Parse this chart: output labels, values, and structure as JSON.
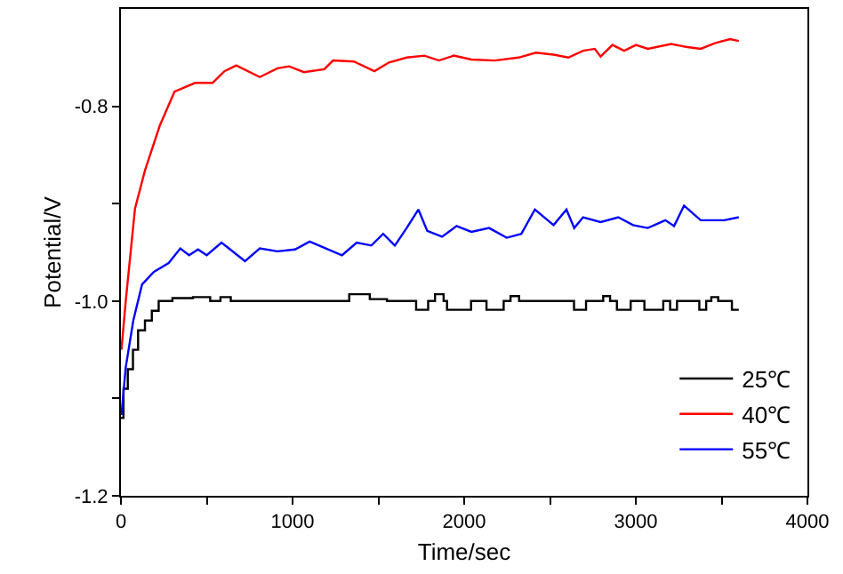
{
  "chart_data": {
    "type": "line",
    "xlabel": "Time/sec",
    "ylabel": "Potential/V",
    "xlim": [
      0,
      4000
    ],
    "ylim": [
      -1.2,
      -0.7
    ],
    "xticks": [
      0,
      {
        "value": 500,
        "label": null
      },
      1000,
      {
        "value": 1500,
        "label": null
      },
      2000,
      {
        "value": 2500,
        "label": null
      },
      3000,
      {
        "value": 3500,
        "label": null
      },
      4000
    ],
    "yticks": [
      -1.2,
      {
        "value": -1.1,
        "label": null
      },
      {
        "value": -1.0,
        "label": "-1.0"
      },
      {
        "value": -0.9,
        "label": null
      },
      -0.8
    ],
    "legend": "bottom right",
    "marker": "none",
    "line_style": "solid",
    "series": [
      {
        "name": "25℃",
        "color": "#000000",
        "type": "step",
        "x": [
          0,
          15,
          40,
          70,
          100,
          140,
          180,
          220,
          300,
          420,
          520,
          580,
          640,
          1330,
          1450,
          1550,
          1720,
          1790,
          1830,
          1880,
          1900,
          2040,
          2130,
          2230,
          2270,
          2320,
          2640,
          2710,
          2810,
          2850,
          2890,
          2970,
          3050,
          3160,
          3200,
          3240,
          3370,
          3410,
          3440,
          3480,
          3560,
          3600
        ],
        "values": [
          -1.12,
          -1.09,
          -1.07,
          -1.05,
          -1.03,
          -1.02,
          -1.01,
          -1.0,
          -0.997,
          -0.996,
          -1.0,
          -0.996,
          -1.0,
          -0.993,
          -0.998,
          -1.0,
          -1.009,
          -1.0,
          -0.993,
          -1.0,
          -1.009,
          -1.0,
          -1.009,
          -1.0,
          -0.995,
          -1.0,
          -1.009,
          -1.0,
          -0.995,
          -1.0,
          -1.009,
          -1.0,
          -1.009,
          -1.0,
          -1.009,
          -1.0,
          -1.009,
          -1.0,
          -0.996,
          -1.0,
          -1.009,
          -1.009
        ]
      },
      {
        "name": "40℃",
        "color": "#ff0000",
        "x": [
          3,
          28,
          82,
          140,
          226,
          312,
          432,
          534,
          603,
          672,
          809,
          912,
          980,
          1066,
          1185,
          1236,
          1357,
          1477,
          1562,
          1665,
          1768,
          1853,
          1939,
          2042,
          2179,
          2316,
          2418,
          2521,
          2607,
          2693,
          2761,
          2795,
          2864,
          2932,
          3001,
          3070,
          3206,
          3292,
          3378,
          3464,
          3549,
          3600
        ],
        "values": [
          -1.05,
          -1.0,
          -0.905,
          -0.866,
          -0.82,
          -0.785,
          -0.776,
          -0.776,
          -0.764,
          -0.758,
          -0.77,
          -0.761,
          -0.759,
          -0.765,
          -0.762,
          -0.753,
          -0.754,
          -0.764,
          -0.755,
          -0.75,
          -0.748,
          -0.753,
          -0.748,
          -0.752,
          -0.753,
          -0.75,
          -0.745,
          -0.747,
          -0.75,
          -0.743,
          -0.741,
          -0.749,
          -0.737,
          -0.743,
          -0.737,
          -0.741,
          -0.736,
          -0.739,
          -0.741,
          -0.735,
          -0.731,
          -0.733
        ]
      },
      {
        "name": "55℃",
        "color": "#0000ff",
        "x": [
          3,
          28,
          72,
          123,
          192,
          278,
          346,
          397,
          449,
          500,
          586,
          723,
          809,
          912,
          1014,
          1100,
          1288,
          1374,
          1459,
          1528,
          1596,
          1665,
          1733,
          1785,
          1871,
          1956,
          2042,
          2145,
          2248,
          2333,
          2412,
          2521,
          2596,
          2641,
          2693,
          2795,
          2898,
          2984,
          3070,
          3172,
          3223,
          3281,
          3378,
          3515,
          3600
        ],
        "values": [
          -1.117,
          -1.068,
          -1.02,
          -0.983,
          -0.97,
          -0.961,
          -0.946,
          -0.953,
          -0.947,
          -0.953,
          -0.94,
          -0.959,
          -0.946,
          -0.949,
          -0.947,
          -0.939,
          -0.953,
          -0.94,
          -0.943,
          -0.931,
          -0.943,
          -0.925,
          -0.906,
          -0.928,
          -0.934,
          -0.923,
          -0.929,
          -0.925,
          -0.935,
          -0.931,
          -0.906,
          -0.922,
          -0.906,
          -0.925,
          -0.914,
          -0.919,
          -0.914,
          -0.922,
          -0.925,
          -0.917,
          -0.923,
          -0.902,
          -0.917,
          -0.917,
          -0.914
        ]
      }
    ]
  }
}
